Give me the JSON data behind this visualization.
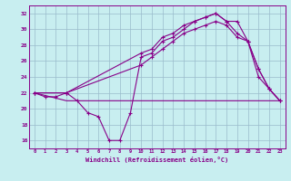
{
  "xlabel": "Windchill (Refroidissement éolien,°C)",
  "background_color": "#c8eef0",
  "line_color": "#880088",
  "grid_color": "#99bbcc",
  "xlim": [
    -0.5,
    23.5
  ],
  "ylim": [
    15.0,
    33.0
  ],
  "yticks": [
    16,
    18,
    20,
    22,
    24,
    26,
    28,
    30,
    32
  ],
  "xticks": [
    0,
    1,
    2,
    3,
    4,
    5,
    6,
    7,
    8,
    9,
    10,
    11,
    12,
    13,
    14,
    15,
    16,
    17,
    18,
    19,
    20,
    21,
    22,
    23
  ],
  "line1_x": [
    0,
    1,
    2,
    3,
    4,
    5,
    6,
    7,
    8,
    9,
    10,
    11,
    12,
    13,
    14,
    15,
    16,
    17,
    18,
    19,
    20,
    21,
    22,
    23
  ],
  "line1_y": [
    22,
    21.5,
    21.5,
    22,
    21,
    19.5,
    19.0,
    16.0,
    16.0,
    19.5,
    26.5,
    27.0,
    28.5,
    29.0,
    30.0,
    31.0,
    31.5,
    32.0,
    31.0,
    29.5,
    28.5,
    25.0,
    22.5,
    21.0
  ],
  "line2_x": [
    0,
    3,
    23
  ],
  "line2_y": [
    22,
    21.0,
    21.0
  ],
  "line3_x": [
    0,
    3,
    10,
    11,
    12,
    13,
    14,
    15,
    16,
    17,
    18,
    19,
    20,
    21,
    22,
    23
  ],
  "line3_y": [
    22,
    22,
    27.0,
    27.5,
    29.0,
    29.5,
    30.5,
    31.0,
    31.5,
    32.0,
    31.0,
    31.0,
    28.5,
    25.0,
    22.5,
    21.0
  ],
  "line4_x": [
    0,
    3,
    10,
    11,
    12,
    13,
    14,
    15,
    16,
    17,
    18,
    19,
    20,
    21,
    22,
    23
  ],
  "line4_y": [
    22,
    22,
    25.5,
    26.5,
    27.5,
    28.5,
    29.5,
    30.0,
    30.5,
    31.0,
    30.5,
    29.0,
    28.5,
    24.0,
    22.5,
    21.0
  ]
}
